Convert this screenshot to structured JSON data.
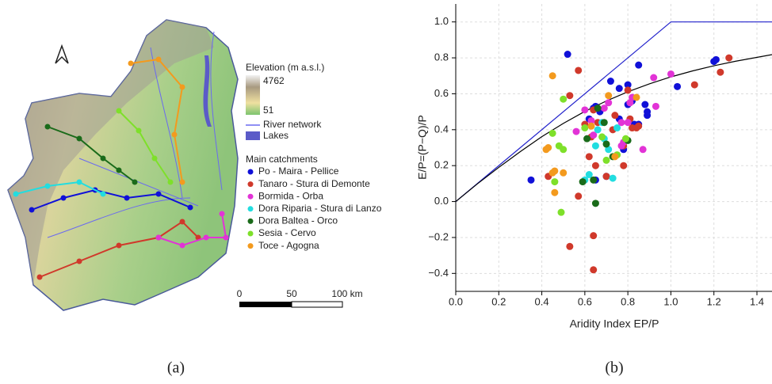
{
  "map": {
    "caption": "(a)",
    "elevation_title": "Elevation (m a.s.l.)",
    "elevation_max": 4762,
    "elevation_min": 51,
    "river_label": "River network",
    "river_color": "#6a6af0",
    "lakes_label": "Lakes",
    "lakes_color": "#5b5bc8",
    "catchments_title": "Main catchments",
    "scale_labels": [
      "0",
      "50",
      "100 km"
    ]
  },
  "chart_data": {
    "type": "scatter",
    "caption": "(b)",
    "xlabel": "Aridity Index EP/P",
    "ylabel": "E/P=(P−Q)/P",
    "xlim": [
      0,
      1.47
    ],
    "ylim": [
      -0.5,
      1.1
    ],
    "xticks": [
      {
        "value": 0,
        "label": "0.0"
      },
      {
        "value": 0.2,
        "label": "0.2"
      },
      {
        "value": 0.4,
        "label": "0.4"
      },
      {
        "value": 0.6,
        "label": "0.6"
      },
      {
        "value": 0.8,
        "label": "0.8"
      },
      {
        "value": 1,
        "label": "1.0"
      },
      {
        "value": 1.2,
        "label": "1.2"
      },
      {
        "value": 1.4,
        "label": "1.4"
      }
    ],
    "yticks": [
      {
        "value": -0.4,
        "label": "−0.4"
      },
      {
        "value": -0.2,
        "label": "−0.2"
      },
      {
        "value": 0,
        "label": "0.0"
      },
      {
        "value": 0.2,
        "label": "0.2"
      },
      {
        "value": 0.4,
        "label": "0.4"
      },
      {
        "value": 0.6,
        "label": "0.6"
      },
      {
        "value": 0.8,
        "label": "0.8"
      },
      {
        "value": 1,
        "label": "1.0"
      }
    ],
    "grid": true,
    "lines": [
      {
        "color": "#2222cc",
        "x": [
          0,
          1,
          1.47
        ],
        "values": [
          0,
          1,
          1
        ]
      },
      {
        "color": "#000000",
        "x": [
          0,
          0.1,
          0.2,
          0.3,
          0.4,
          0.5,
          0.6,
          0.7,
          0.8,
          0.9,
          1.0,
          1.1,
          1.2,
          1.3,
          1.47
        ],
        "values": [
          0,
          0.098,
          0.19,
          0.278,
          0.361,
          0.435,
          0.502,
          0.56,
          0.611,
          0.655,
          0.694,
          0.727,
          0.756,
          0.781,
          0.818
        ]
      }
    ],
    "series": [
      {
        "name": "Po - Maira - Pellice",
        "color": "#1010d8",
        "x": [
          0.35,
          0.52,
          0.62,
          0.64,
          0.65,
          0.67,
          0.72,
          0.76,
          0.8,
          0.82,
          0.85,
          0.89,
          0.89,
          0.83,
          0.85,
          1.03,
          1.2,
          1.21,
          0.8,
          0.78,
          0.7,
          0.65,
          0.88,
          0.76
        ],
        "values": [
          0.12,
          0.82,
          0.46,
          0.52,
          0.53,
          0.5,
          0.67,
          0.63,
          0.54,
          0.56,
          0.76,
          0.5,
          0.48,
          0.43,
          0.43,
          0.64,
          0.78,
          0.79,
          0.65,
          0.29,
          0.14,
          0.12,
          0.54,
          0.46
        ]
      },
      {
        "name": "Tanaro - Stura di Demonte",
        "color": "#d0392b",
        "x": [
          0.53,
          0.57,
          0.6,
          0.62,
          0.63,
          0.64,
          0.65,
          0.64,
          0.64,
          0.53,
          0.57,
          0.43,
          0.7,
          0.74,
          0.78,
          0.8,
          0.82,
          0.84,
          0.85,
          1.11,
          1.23,
          1.27,
          0.78,
          0.73,
          0.81,
          0.66
        ],
        "values": [
          0.59,
          0.73,
          0.43,
          0.25,
          0.36,
          0.51,
          0.2,
          -0.19,
          -0.38,
          -0.25,
          0.03,
          0.14,
          0.14,
          0.48,
          0.2,
          0.62,
          0.41,
          0.41,
          0.42,
          0.65,
          0.72,
          0.8,
          0.31,
          0.4,
          0.46,
          0.44
        ]
      },
      {
        "name": "Bormida - Orba",
        "color": "#e233d6",
        "x": [
          0.6,
          0.63,
          0.69,
          0.71,
          0.77,
          0.78,
          0.81,
          0.82,
          0.87,
          0.93,
          0.92,
          1.0,
          0.77,
          0.8,
          0.64,
          0.56
        ],
        "values": [
          0.51,
          0.45,
          0.52,
          0.55,
          0.44,
          0.33,
          0.55,
          0.58,
          0.29,
          0.53,
          0.69,
          0.71,
          0.31,
          0.44,
          0.37,
          0.39
        ]
      },
      {
        "name": "Dora Riparia - Stura di Lanzo",
        "color": "#22dde0",
        "x": [
          0.6,
          0.65,
          0.66,
          0.69,
          0.71,
          0.73,
          0.75,
          0.62,
          0.68
        ],
        "values": [
          0.12,
          0.31,
          0.4,
          0.35,
          0.29,
          0.13,
          0.41,
          0.15,
          0.44
        ]
      },
      {
        "name": "Dora Baltea - Orco",
        "color": "#1a6b1a",
        "x": [
          0.59,
          0.61,
          0.64,
          0.65,
          0.66,
          0.69,
          0.7,
          0.73,
          0.8
        ],
        "values": [
          0.11,
          0.35,
          0.12,
          -0.01,
          0.52,
          0.44,
          0.32,
          0.25,
          0.34
        ]
      },
      {
        "name": "Sesia - Cervo",
        "color": "#7ee02a",
        "x": [
          0.45,
          0.48,
          0.49,
          0.5,
          0.5,
          0.46,
          0.6,
          0.68,
          0.75,
          0.79,
          0.7
        ],
        "values": [
          0.38,
          0.31,
          -0.06,
          0.57,
          0.29,
          0.11,
          0.41,
          0.36,
          0.26,
          0.35,
          0.23
        ]
      },
      {
        "name": "Toce - Agogna",
        "color": "#f39a1e",
        "x": [
          0.42,
          0.43,
          0.45,
          0.45,
          0.46,
          0.5,
          0.71,
          0.84,
          0.63,
          0.74,
          0.46
        ],
        "values": [
          0.29,
          0.3,
          0.7,
          0.16,
          0.05,
          0.16,
          0.59,
          0.58,
          0.42,
          0.25,
          0.17
        ]
      }
    ]
  }
}
